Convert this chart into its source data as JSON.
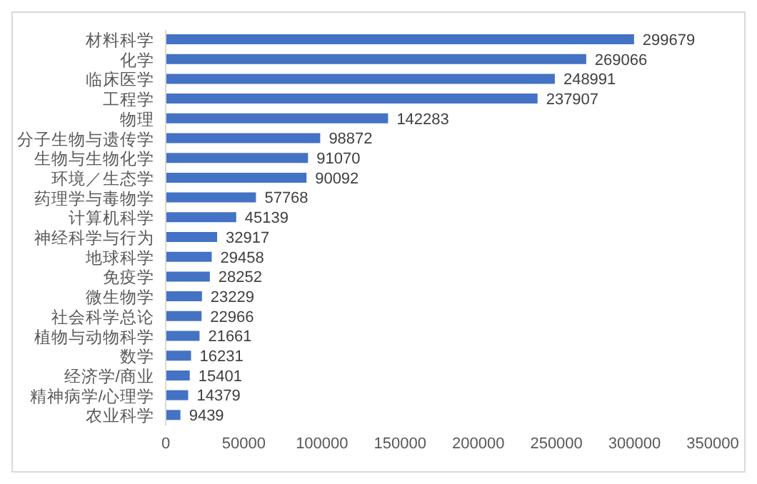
{
  "chart_data": {
    "type": "bar",
    "orientation": "horizontal",
    "categories": [
      "材料科学",
      "化学",
      "临床医学",
      "工程学",
      "物理",
      "分子生物与遗传学",
      "生物与生物化学",
      "环境／生态学",
      "药理学与毒物学",
      "计算机科学",
      "神经科学与行为",
      "地球科学",
      "免疫学",
      "微生物学",
      "社会科学总论",
      "植物与动物科学",
      "数学",
      "经济学/商业",
      "精神病学/心理学",
      "农业科学"
    ],
    "values": [
      299679,
      269066,
      248991,
      237907,
      142283,
      98872,
      91070,
      90092,
      57768,
      45139,
      32917,
      29458,
      28252,
      23229,
      22966,
      21661,
      16231,
      15401,
      14379,
      9439
    ],
    "color": "#4472c4",
    "xlim": [
      0,
      350000
    ],
    "xticks": [
      0,
      50000,
      100000,
      150000,
      200000,
      250000,
      300000,
      350000
    ],
    "data_labels": true,
    "grid": false,
    "legend": false
  }
}
